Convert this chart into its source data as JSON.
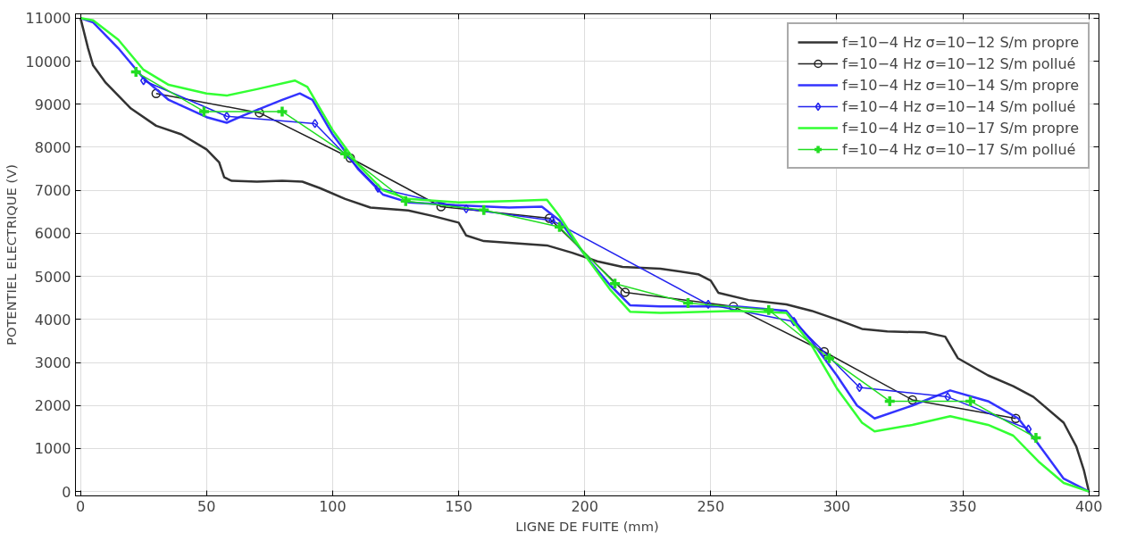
{
  "chart_data": {
    "type": "line",
    "xlabel": "LIGNE DE FUITE (mm)",
    "ylabel": "POTENTIEL ELECTRIQUE (V)",
    "xlim": [
      -2,
      404
    ],
    "ylim": [
      -100,
      11100
    ],
    "xticks": [
      0,
      50,
      100,
      150,
      200,
      250,
      300,
      350,
      400
    ],
    "yticks": [
      0,
      1000,
      2000,
      3000,
      4000,
      5000,
      6000,
      7000,
      8000,
      9000,
      10000,
      11000
    ],
    "grid": true,
    "legend": "top right",
    "series": [
      {
        "name": "f=10−4 Hz σ=10−12 S/m propre",
        "color": "#333333",
        "marker": "none",
        "x": [
          0,
          3,
          5,
          10,
          20,
          30,
          40,
          50,
          55,
          57,
          60,
          70,
          80,
          88,
          95,
          105,
          115,
          130,
          140,
          150,
          153,
          160,
          175,
          185,
          195,
          205,
          215,
          230,
          245,
          250,
          253,
          265,
          280,
          290,
          300,
          310,
          320,
          335,
          343,
          348,
          360,
          370,
          378,
          390,
          395,
          398,
          400
        ],
        "values": [
          11000,
          10300,
          9900,
          9500,
          8900,
          8500,
          8300,
          7950,
          7650,
          7300,
          7220,
          7200,
          7220,
          7200,
          7050,
          6800,
          6600,
          6530,
          6400,
          6250,
          5950,
          5820,
          5760,
          5720,
          5550,
          5350,
          5220,
          5180,
          5050,
          4900,
          4620,
          4450,
          4350,
          4200,
          4000,
          3780,
          3720,
          3700,
          3600,
          3100,
          2700,
          2450,
          2200,
          1600,
          1050,
          500,
          0
        ]
      },
      {
        "name": "f=10−4 Hz σ=10−12 S/m pollué",
        "color": "#222222",
        "marker": "circle",
        "x": [
          30,
          71,
          107,
          143,
          186,
          216,
          259,
          295,
          330,
          371
        ],
        "values": [
          9250,
          8800,
          7750,
          6620,
          6350,
          4630,
          4300,
          3250,
          2130,
          1700
        ]
      },
      {
        "name": "f=10−4 Hz σ=10−14 S/m propre",
        "color": "#3333ff",
        "marker": "none",
        "x": [
          0,
          5,
          15,
          25,
          35,
          50,
          58,
          65,
          80,
          87,
          92,
          100,
          110,
          120,
          130,
          150,
          170,
          183,
          190,
          200,
          210,
          218,
          230,
          260,
          280,
          290,
          300,
          308,
          315,
          330,
          345,
          360,
          372,
          380,
          390,
          400
        ],
        "values": [
          11000,
          10900,
          10300,
          9600,
          9100,
          8700,
          8570,
          8750,
          9100,
          9250,
          9100,
          8300,
          7500,
          6900,
          6720,
          6650,
          6600,
          6620,
          6300,
          5500,
          4800,
          4330,
          4300,
          4300,
          4200,
          3500,
          2700,
          2000,
          1700,
          2000,
          2350,
          2100,
          1700,
          1100,
          300,
          0
        ]
      },
      {
        "name": "f=10−4 Hz σ=10−14 S/m pollué",
        "color": "#2222ee",
        "marker": "diamond",
        "x": [
          25,
          58,
          93,
          118,
          153,
          187,
          249,
          283,
          309,
          344,
          376
        ],
        "values": [
          9550,
          8720,
          8550,
          7050,
          6570,
          6300,
          4350,
          3950,
          2420,
          2200,
          1450
        ]
      },
      {
        "name": "f=10−4 Hz σ=10−17 S/m propre",
        "color": "#33ff33",
        "marker": "none",
        "x": [
          0,
          5,
          15,
          25,
          35,
          50,
          58,
          70,
          85,
          90,
          100,
          110,
          120,
          130,
          150,
          170,
          185,
          190,
          200,
          210,
          218,
          230,
          260,
          280,
          290,
          300,
          310,
          315,
          330,
          345,
          360,
          370,
          380,
          390,
          400
        ],
        "values": [
          11000,
          10950,
          10500,
          9800,
          9450,
          9250,
          9200,
          9350,
          9550,
          9400,
          8400,
          7600,
          7000,
          6800,
          6720,
          6750,
          6780,
          6400,
          5500,
          4700,
          4180,
          4150,
          4200,
          4150,
          3400,
          2400,
          1600,
          1400,
          1550,
          1750,
          1550,
          1300,
          700,
          200,
          0
        ]
      },
      {
        "name": "f=10−4 Hz σ=10−17 S/m pollué",
        "color": "#22dd22",
        "marker": "cross",
        "x": [
          22,
          49,
          80,
          105,
          129,
          160,
          190,
          212,
          241,
          273,
          297,
          321,
          353,
          379
        ],
        "values": [
          9750,
          8830,
          8830,
          7850,
          6750,
          6540,
          6150,
          4830,
          4380,
          4220,
          3100,
          2100,
          2100,
          1250
        ]
      }
    ]
  }
}
